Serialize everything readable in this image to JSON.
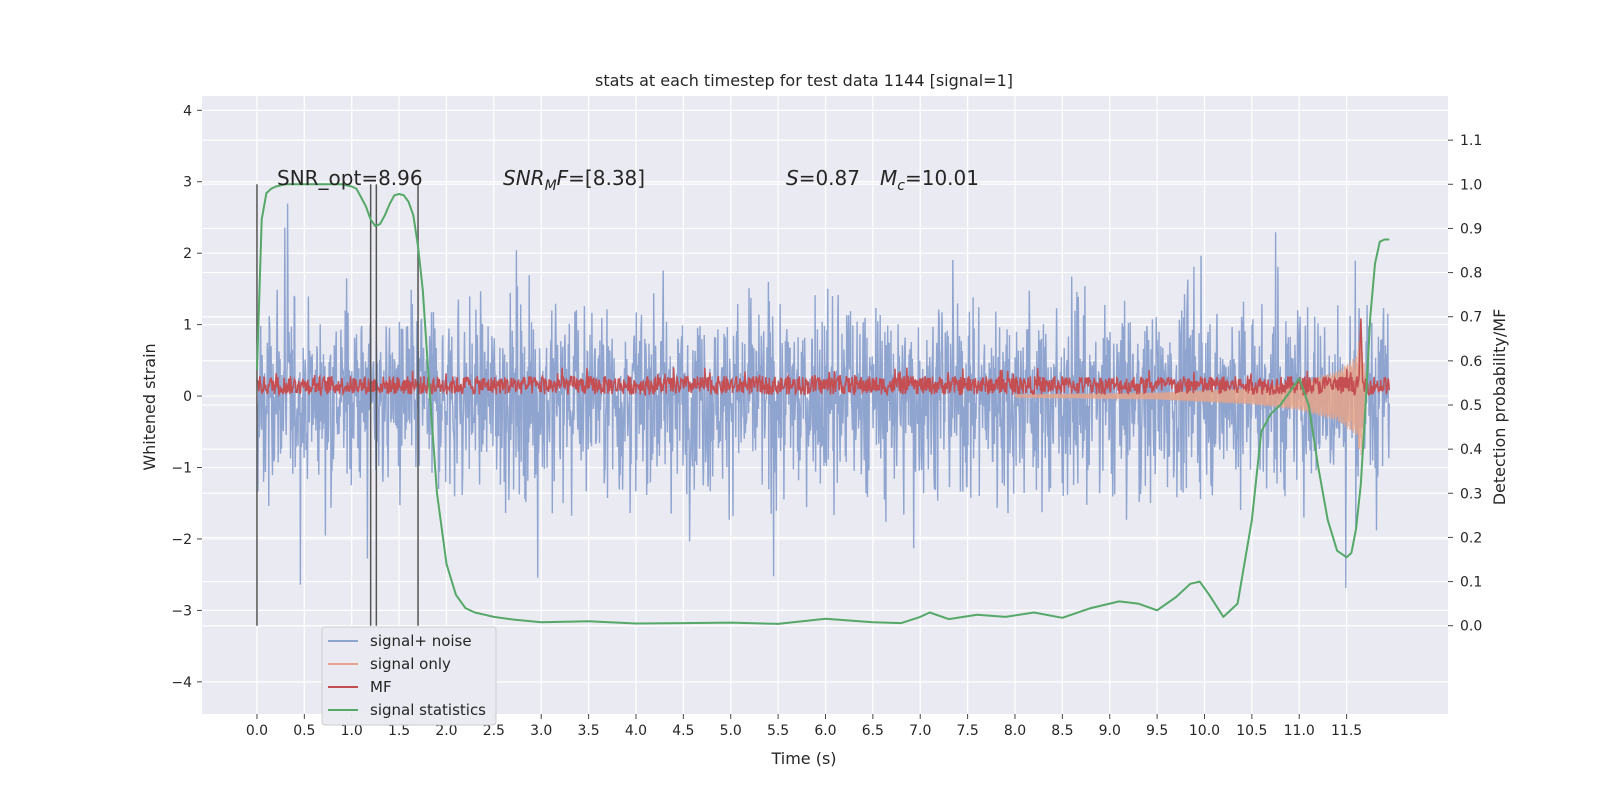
{
  "chart_data": {
    "type": "line",
    "title": "stats at each timestep for test data 1144 [signal=1]",
    "xlabel": "Time (s)",
    "ylabel_left": "Whitened strain",
    "ylabel_right": "Detection probability/MF",
    "xlim": [
      -0.58,
      12.57
    ],
    "ylim_left": [
      -4.45,
      4.2
    ],
    "ylim_right": [
      -0.2,
      1.2
    ],
    "x_ticks": [
      "0.0",
      "0.5",
      "1.0",
      "1.5",
      "2.0",
      "2.5",
      "3.0",
      "3.5",
      "4.0",
      "4.5",
      "5.0",
      "5.5",
      "6.0",
      "6.5",
      "7.0",
      "7.5",
      "8.0",
      "8.5",
      "9.0",
      "9.5",
      "10.0",
      "10.5",
      "11.0",
      "11.5"
    ],
    "y_ticks_left": [
      "−4",
      "−3",
      "−2",
      "−1",
      "0",
      "1",
      "2",
      "3",
      "4"
    ],
    "y_ticks_right": [
      "0.0",
      "0.1",
      "0.2",
      "0.3",
      "0.4",
      "0.5",
      "0.6",
      "0.7",
      "0.8",
      "0.9",
      "1.0",
      "1.1"
    ],
    "grid": true,
    "legend_position": "lower-left",
    "annotations": {
      "snr_opt": "SNR_opt=8.96",
      "snr_mf_main": "SNR",
      "snr_mf_sub": "M",
      "snr_mf_italic": "F",
      "snr_mf_value": "=[8.38]",
      "s_symbol": "S",
      "s_value": "=0.87",
      "mc_symbol": "M",
      "mc_sub": "c",
      "mc_value": "=10.01"
    },
    "vertical_lines_x": [
      0.0,
      1.2,
      1.26,
      1.7
    ],
    "series": [
      {
        "name": "signal+ noise",
        "color": "#8fa4cf",
        "description_range": [
          -3.0,
          3.0
        ],
        "x_range": [
          0.0,
          11.95
        ]
      },
      {
        "name": "signal only",
        "color": "#e6a48a",
        "envelope_x": [
          8.0,
          9.5,
          10.5,
          11.0,
          11.4,
          11.6,
          11.65,
          11.7
        ],
        "envelope_amp": [
          0.02,
          0.05,
          0.12,
          0.2,
          0.35,
          0.55,
          0.9,
          0.3
        ]
      },
      {
        "name": "MF",
        "color": "#c44e52",
        "baseline": 0.15,
        "jitter": 0.13,
        "peak_x": 11.65,
        "peak_y": 1.0
      },
      {
        "name": "signal statistics",
        "color": "#55a868",
        "x": [
          0.0,
          0.05,
          0.1,
          0.15,
          0.2,
          0.3,
          0.4,
          0.5,
          0.6,
          0.7,
          0.8,
          0.9,
          1.0,
          1.05,
          1.1,
          1.15,
          1.2,
          1.25,
          1.3,
          1.35,
          1.4,
          1.45,
          1.5,
          1.55,
          1.6,
          1.65,
          1.7,
          1.75,
          1.8,
          1.85,
          1.9,
          2.0,
          2.1,
          2.2,
          2.3,
          2.4,
          2.5,
          2.7,
          3.0,
          3.5,
          4.0,
          4.5,
          5.0,
          5.5,
          6.0,
          6.5,
          6.8,
          7.0,
          7.1,
          7.3,
          7.6,
          7.9,
          8.2,
          8.5,
          8.8,
          9.1,
          9.3,
          9.5,
          9.7,
          9.85,
          9.95,
          10.05,
          10.2,
          10.35,
          10.5,
          10.6,
          10.7,
          10.8,
          11.0,
          11.1,
          11.2,
          11.3,
          11.4,
          11.5,
          11.55,
          11.6,
          11.65,
          11.7,
          11.75,
          11.8,
          11.85,
          11.9,
          11.95
        ],
        "y": [
          0.58,
          0.92,
          0.98,
          0.99,
          0.995,
          1.0,
          1.0,
          1.0,
          1.0,
          1.0,
          1.0,
          1.0,
          0.995,
          0.99,
          0.97,
          0.95,
          0.92,
          0.905,
          0.91,
          0.93,
          0.955,
          0.975,
          0.978,
          0.975,
          0.96,
          0.93,
          0.86,
          0.76,
          0.6,
          0.45,
          0.3,
          0.14,
          0.07,
          0.04,
          0.03,
          0.025,
          0.02,
          0.014,
          0.008,
          0.01,
          0.005,
          0.006,
          0.007,
          0.004,
          0.016,
          0.008,
          0.006,
          0.02,
          0.03,
          0.015,
          0.025,
          0.02,
          0.03,
          0.018,
          0.04,
          0.055,
          0.05,
          0.035,
          0.065,
          0.095,
          0.1,
          0.07,
          0.02,
          0.05,
          0.24,
          0.44,
          0.48,
          0.5,
          0.56,
          0.5,
          0.36,
          0.24,
          0.17,
          0.155,
          0.165,
          0.22,
          0.32,
          0.5,
          0.7,
          0.82,
          0.87,
          0.875,
          0.875
        ]
      }
    ]
  }
}
